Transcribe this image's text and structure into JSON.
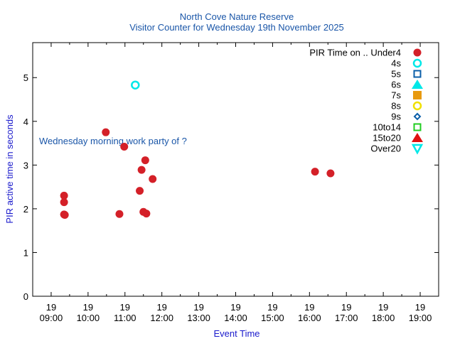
{
  "chart_data": {
    "type": "scatter",
    "title": "North Cove Nature Reserve",
    "subtitle": "Visitor Counter for Wednesday 19th November 2025",
    "xlabel": "Event Time",
    "ylabel": "PIR active time in seconds",
    "xlim": [
      8.5,
      19.5
    ],
    "ylim": [
      0,
      5.8
    ],
    "x_ticks": [
      {
        "value": 9,
        "day": "19",
        "time": "09:00"
      },
      {
        "value": 10,
        "day": "19",
        "time": "10:00"
      },
      {
        "value": 11,
        "day": "19",
        "time": "11:00"
      },
      {
        "value": 12,
        "day": "19",
        "time": "12:00"
      },
      {
        "value": 13,
        "day": "19",
        "time": "13:00"
      },
      {
        "value": 14,
        "day": "19",
        "time": "14:00"
      },
      {
        "value": 15,
        "day": "19",
        "time": "15:00"
      },
      {
        "value": 16,
        "day": "19",
        "time": "16:00"
      },
      {
        "value": 17,
        "day": "19",
        "time": "17:00"
      },
      {
        "value": 18,
        "day": "19",
        "time": "18:00"
      },
      {
        "value": 19,
        "day": "19",
        "time": "19:00"
      }
    ],
    "y_ticks": [
      {
        "value": 0,
        "label": "0"
      },
      {
        "value": 1,
        "label": "1"
      },
      {
        "value": 2,
        "label": "2"
      },
      {
        "value": 3,
        "label": "3"
      },
      {
        "value": 4,
        "label": "4"
      },
      {
        "value": 5,
        "label": "5"
      }
    ],
    "legend_title": "PIR Time on ..",
    "legend_position": "top-right",
    "annotation": "Wednesday morning work party of ?",
    "series": [
      {
        "name": "Under4",
        "marker": "circle-filled",
        "color": "#d42028",
        "points": [
          {
            "x": 9.35,
            "y": 2.3
          },
          {
            "x": 9.35,
            "y": 2.15
          },
          {
            "x": 9.35,
            "y": 1.87
          },
          {
            "x": 9.37,
            "y": 1.86
          },
          {
            "x": 10.48,
            "y": 3.75
          },
          {
            "x": 10.85,
            "y": 1.88
          },
          {
            "x": 10.98,
            "y": 3.42
          },
          {
            "x": 11.4,
            "y": 2.41
          },
          {
            "x": 11.45,
            "y": 2.89
          },
          {
            "x": 11.5,
            "y": 1.93
          },
          {
            "x": 11.55,
            "y": 3.11
          },
          {
            "x": 11.58,
            "y": 1.89
          },
          {
            "x": 11.75,
            "y": 2.68
          },
          {
            "x": 16.15,
            "y": 2.85
          },
          {
            "x": 16.57,
            "y": 2.81
          }
        ]
      },
      {
        "name": "4s",
        "marker": "circle-open",
        "color": "#00e8e8",
        "points": [
          {
            "x": 11.28,
            "y": 4.83
          }
        ]
      },
      {
        "name": "5s",
        "marker": "square-open",
        "color": "#0b5fa8",
        "points": []
      },
      {
        "name": "6s",
        "marker": "triangle-up-filled",
        "color": "#00e8e8",
        "points": []
      },
      {
        "name": "7s",
        "marker": "square-filled",
        "color": "#e89a10",
        "points": []
      },
      {
        "name": "8s",
        "marker": "circle-open",
        "color": "#f0e000",
        "points": []
      },
      {
        "name": "9s",
        "marker": "diamond-open",
        "color": "#0b5fa8",
        "points": []
      },
      {
        "name": "10to14",
        "marker": "square-open",
        "color": "#20cc20",
        "points": []
      },
      {
        "name": "15to20",
        "marker": "triangle-up-filled",
        "color": "#e01010",
        "points": []
      },
      {
        "name": "Over20",
        "marker": "triangle-down-open",
        "color": "#00e8e8",
        "points": []
      }
    ]
  }
}
